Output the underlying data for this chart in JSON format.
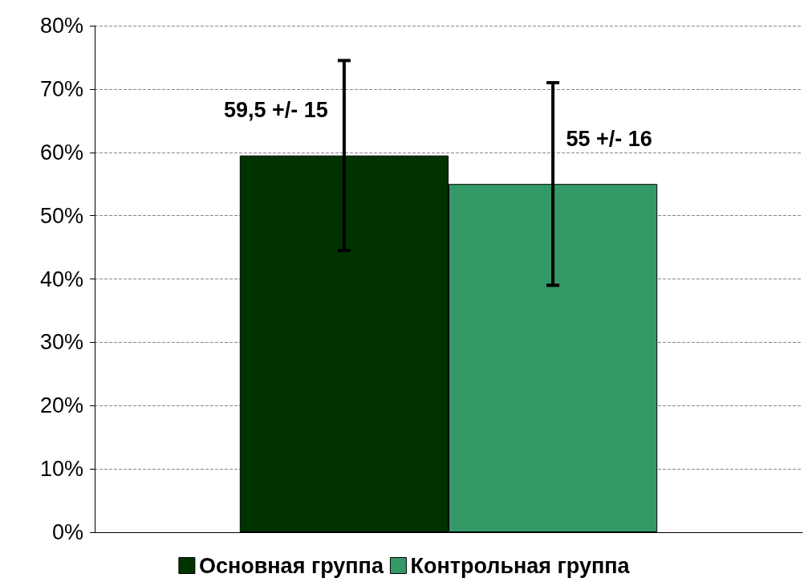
{
  "chart_data": {
    "type": "bar",
    "categories": [
      null
    ],
    "series": [
      {
        "name": "Основная группа",
        "color": "#003300",
        "values": [
          59.5
        ],
        "errors": [
          15
        ],
        "value_labels": [
          "59,5 +/- 15"
        ]
      },
      {
        "name": "Контрольная группа",
        "color": "#339966",
        "values": [
          55
        ],
        "errors": [
          16
        ],
        "value_labels": [
          "55 +/- 16"
        ]
      }
    ],
    "ylim": [
      0,
      80
    ],
    "yticks": [
      {
        "value": 0,
        "label": "0%"
      },
      {
        "value": 10,
        "label": "10%"
      },
      {
        "value": 20,
        "label": "20%"
      },
      {
        "value": 30,
        "label": "30%"
      },
      {
        "value": 40,
        "label": "40%"
      },
      {
        "value": 50,
        "label": "50%"
      },
      {
        "value": 60,
        "label": "60%"
      },
      {
        "value": 70,
        "label": "70%"
      },
      {
        "value": 80,
        "label": "80%"
      }
    ],
    "grid": "y",
    "legend": "bottom"
  }
}
